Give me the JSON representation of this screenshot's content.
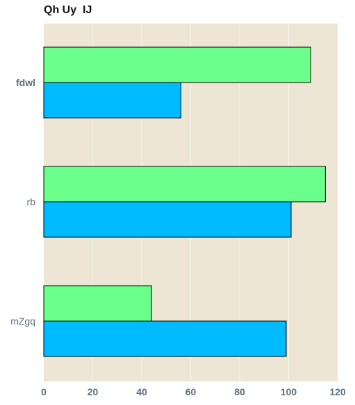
{
  "colors": {
    "background": "#ffffff",
    "plot_background": "#ede6d4",
    "grid": "#f7f3ea",
    "series_a": "#6bff8b",
    "series_b": "#00bbff",
    "bar_edge": "#000000",
    "tick_text": "#5f6e7a"
  },
  "chart_data": {
    "type": "bar",
    "orientation": "horizontal",
    "title": "Qh Uy  IJ",
    "xlabel": "",
    "ylabel": "",
    "categories": [
      "fdwl",
      "rb",
      "mZgq"
    ],
    "series": [
      {
        "values": [
          109,
          115,
          44
        ],
        "color": "#6bff8b"
      },
      {
        "values": [
          56,
          101,
          99
        ],
        "color": "#00bbff"
      }
    ],
    "xlim": [
      0,
      120
    ],
    "xticks": [
      0,
      20,
      40,
      60,
      80,
      100,
      120
    ],
    "grid": true
  }
}
